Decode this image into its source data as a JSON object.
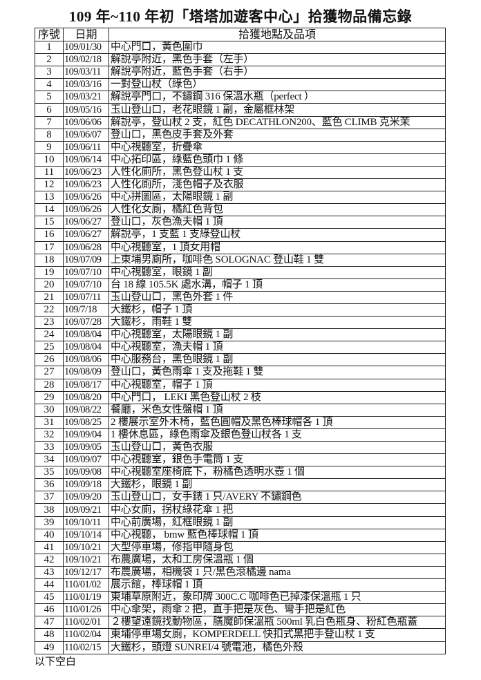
{
  "title": "109 年~110 年初「塔塔加遊客中心」拾獲物品備忘錄",
  "columns": [
    "序號",
    "日期",
    "拾獲地點及品項"
  ],
  "rows": [
    [
      "1",
      "109/01/30",
      "中心門口，黃色圍巾"
    ],
    [
      "2",
      "109/02/18",
      "解說亭附近，黑色手套（左手）"
    ],
    [
      "3",
      "109/03/11",
      "解說亭附近，藍色手套（右手）"
    ],
    [
      "4",
      "109/03/16",
      "一對登山杖（綠色）"
    ],
    [
      "5",
      "109/03/21",
      "解說亭門口，不鏽鋼 316 保溫水瓶（perfect ）"
    ],
    [
      "6",
      "109/05/16",
      "玉山登山口，老花眼鏡 1 副，金屬框林架"
    ],
    [
      "7",
      "109/06/06",
      "解說亭，登山杖 2 支，紅色 DECATHLON200、藍色 CLIMB 克米茉"
    ],
    [
      "8",
      "109/06/07",
      "登山口，黑色皮手套及外套"
    ],
    [
      "9",
      "109/06/11",
      "中心視聽室，折疊傘"
    ],
    [
      "10",
      "109/06/14",
      "中心拓印區，綠藍色頭巾 1 條"
    ],
    [
      "11",
      "109/06/23",
      "人性化廁所，黑色登山杖 1 支"
    ],
    [
      "12",
      "109/06/23",
      "人性化廁所，淺色帽子及衣服"
    ],
    [
      "13",
      "109/06/26",
      "中心拼圖區，太陽眼鏡 1 副"
    ],
    [
      "14",
      "109/06/26",
      "人性化女廁，橘紅色背包"
    ],
    [
      "15",
      "109/06/27",
      "登山口，灰色漁夫帽 1 頂"
    ],
    [
      "16",
      "109/06/27",
      "解說亭，1 支藍 1 支綠登山杖"
    ],
    [
      "17",
      "109/06/28",
      "中心視聽室，1 頂女用帽"
    ],
    [
      "18",
      "109/07/09",
      "上東埔男廁所，咖啡色 SOLOGNAC 登山鞋 1 雙"
    ],
    [
      "19",
      "109/07/10",
      "中心視聽室，眼鏡 1 副"
    ],
    [
      "20",
      "109/07/10",
      "台 18 線 105.5K 處水溝，帽子 1 頂"
    ],
    [
      "21",
      "109/07/11",
      "玉山登山口，黑色外套 1 件"
    ],
    [
      "22",
      "109/7/18",
      "大鐵杉，帽子 1 頂"
    ],
    [
      "23",
      "109/07/28",
      "大鐵杉，雨鞋 1 雙"
    ],
    [
      "24",
      "109/08/04",
      "中心視聽室，太陽眼鏡 1 副"
    ],
    [
      "25",
      "109/08/04",
      "中心視聽室，漁夫帽 1 頂"
    ],
    [
      "26",
      "109/08/06",
      "中心服務台，黑色眼鏡 1 副"
    ],
    [
      "27",
      "109/08/09",
      "登山口，黃色雨傘 1 支及拖鞋 1 雙"
    ],
    [
      "28",
      "109/08/17",
      "中心視聽室，帽子 1 頂"
    ],
    [
      "29",
      "109/08/20",
      "中心門口， LEKI 黑色登山杖 2 枝"
    ],
    [
      "30",
      "109/08/22",
      "餐廳，米色女性盤帽 1 頂"
    ],
    [
      "31",
      "109/08/25",
      "2 樓展示室外木椅，藍色圓帽及黑色棒球帽各 1 頂"
    ],
    [
      "32",
      "109/09/04",
      "1 樓休息區，綠色雨傘及銀色登山杖各 1 支"
    ],
    [
      "33",
      "109/09/05",
      "玉山登山口，黃色衣服"
    ],
    [
      "34",
      "109/09/07",
      "中心視聽室，銀色手電筒 1 支"
    ],
    [
      "35",
      "109/09/08",
      "中心視聽室座椅底下，粉橘色透明水壺 1 個"
    ],
    [
      "36",
      "109/09/18",
      "大鐵杉，眼鏡 1 副"
    ],
    [
      "37",
      "109/09/20",
      "玉山登山口，女手錶 1 只/AVERY 不鏽鋼色"
    ],
    [
      "38",
      "109/09/21",
      "中心女廁，拐杖綠花傘 1 把"
    ],
    [
      "39",
      "109/10/11",
      "中心前廣場，紅框眼鏡 1 副"
    ],
    [
      "40",
      "109/10/14",
      "中心視聽， bmw 藍色棒球帽 1 頂"
    ],
    [
      "41",
      "109/10/21",
      "大型停車場，修指甲隨身包"
    ],
    [
      "42",
      "109/10/21",
      "布農廣場，太和工房保溫瓶 1 個"
    ],
    [
      "43",
      "109/12/17",
      "布農廣場，相機袋 1 只/黑色滾橘邊 nama"
    ],
    [
      "44",
      "110/01/02",
      "展示館，棒球帽 1 頂"
    ],
    [
      "45",
      "110/01/19",
      "東埔草原附近，象印牌 300C.C 咖啡色已掉漆保溫瓶 1 只"
    ],
    [
      "46",
      "110/01/26",
      "中心傘架，雨傘 2 把，直手把是灰色、彎手把是紅色"
    ],
    [
      "47",
      "110/02/01",
      "２樓望遠鏡找動物區，膳魔師保溫瓶 500ml 乳白色瓶身、粉紅色瓶蓋"
    ],
    [
      "48",
      "110/02/04",
      "東埔停車場女廁，KOMPERDELL 快扣式黑把手登山杖 1 支"
    ],
    [
      "49",
      "110/02/15",
      "大鐵杉，頭燈 SUNREI/4 號電池，橘色外殼"
    ]
  ],
  "footer": "以下空白"
}
